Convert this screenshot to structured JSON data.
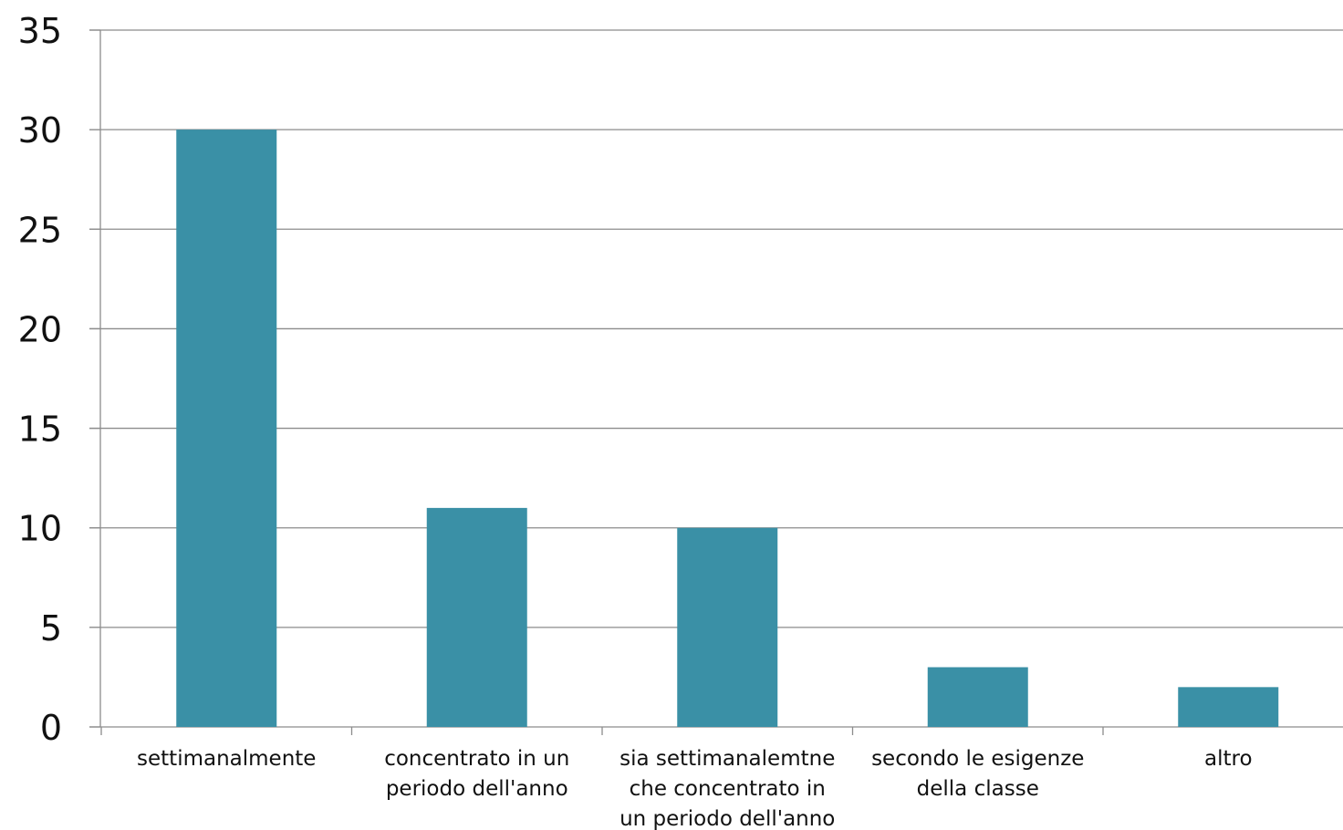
{
  "chart_data": {
    "type": "bar",
    "categories": [
      [
        "settimanalmente"
      ],
      [
        "concentrato in un",
        "periodo dell'anno"
      ],
      [
        "sia settimanalemtne",
        "che concentrato in",
        "un periodo dell'anno"
      ],
      [
        "secondo le esigenze",
        "della classe"
      ],
      [
        "altro"
      ]
    ],
    "values": [
      30,
      11,
      10,
      3,
      2
    ],
    "ylim": [
      0,
      35
    ],
    "yticks": [
      "0",
      "5",
      "10",
      "15",
      "20",
      "25",
      "30",
      "35"
    ],
    "grid": true,
    "legend": "none",
    "colors": {
      "bar": "#3a90a6",
      "grid": "#8c8c8c",
      "axis": "#8c8c8c"
    }
  }
}
